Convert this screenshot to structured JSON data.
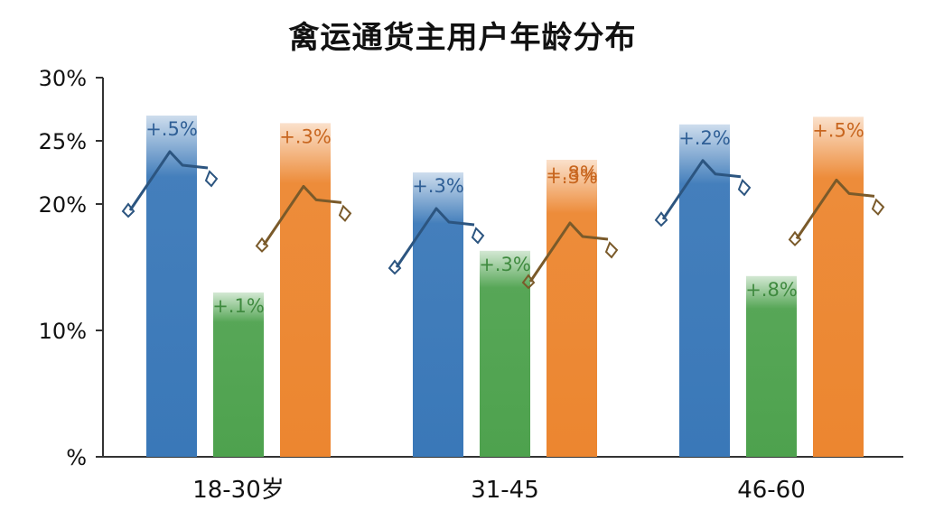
{
  "chart_data": {
    "type": "bar",
    "title": "禽运通货主用户年龄分布",
    "xlabel": "",
    "ylabel": "",
    "ylim": [
      0,
      30
    ],
    "y_ticks": [
      {
        "value": 0,
        "label": "%"
      },
      {
        "value": 10,
        "label": "10%"
      },
      {
        "value": 20,
        "label": "20%"
      },
      {
        "value": 25,
        "label": "25%"
      },
      {
        "value": 30,
        "label": "30%"
      }
    ],
    "categories": [
      "18-30岁",
      "31-45",
      "46-60"
    ],
    "series": [
      {
        "color": "#3a78b8",
        "values": [
          27,
          22.5,
          26.3
        ],
        "labels": [
          "+.5%",
          "+.3%",
          "+.2%"
        ]
      },
      {
        "color": "#4ea24e",
        "values": [
          13,
          16.3,
          14.3
        ],
        "labels": [
          "+.1%",
          "+.3%",
          "+.8%"
        ]
      },
      {
        "color": "#ec8630",
        "values": [
          26.4,
          23.5,
          26.9
        ],
        "labels": [
          "+.3%",
          "+.8%",
          "+.5%"
        ]
      }
    ],
    "extra_labels": [
      {
        "series": 2,
        "category": 1,
        "label": "+.3%",
        "value": 22.2
      }
    ],
    "grid": false,
    "legend": "none"
  }
}
